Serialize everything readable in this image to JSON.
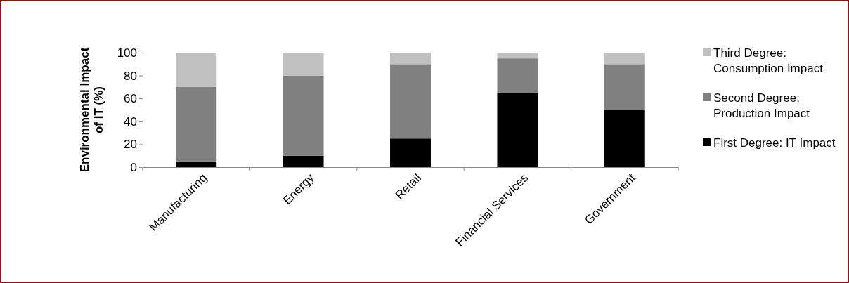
{
  "chart_data": {
    "type": "bar",
    "stacked": true,
    "ylabel": "Environmental Impact of IT (%)",
    "categories": [
      "Manufacturing",
      "Energy",
      "Retail",
      "Financial Services",
      "Government"
    ],
    "series": [
      {
        "name": "First Degree: IT Impact",
        "color": "#000000",
        "values": [
          5,
          10,
          25,
          65,
          50
        ]
      },
      {
        "name": "Second Degree: Production Impact",
        "color": "#808080",
        "values": [
          65,
          70,
          65,
          30,
          40
        ]
      },
      {
        "name": "Third Degree: Consumption Impact",
        "color": "#c0c0c0",
        "values": [
          30,
          20,
          10,
          5,
          10
        ]
      }
    ],
    "ylim": [
      0,
      100
    ],
    "yticks": [
      0,
      20,
      40,
      60,
      80,
      100
    ],
    "grid": false,
    "legend": "right"
  }
}
